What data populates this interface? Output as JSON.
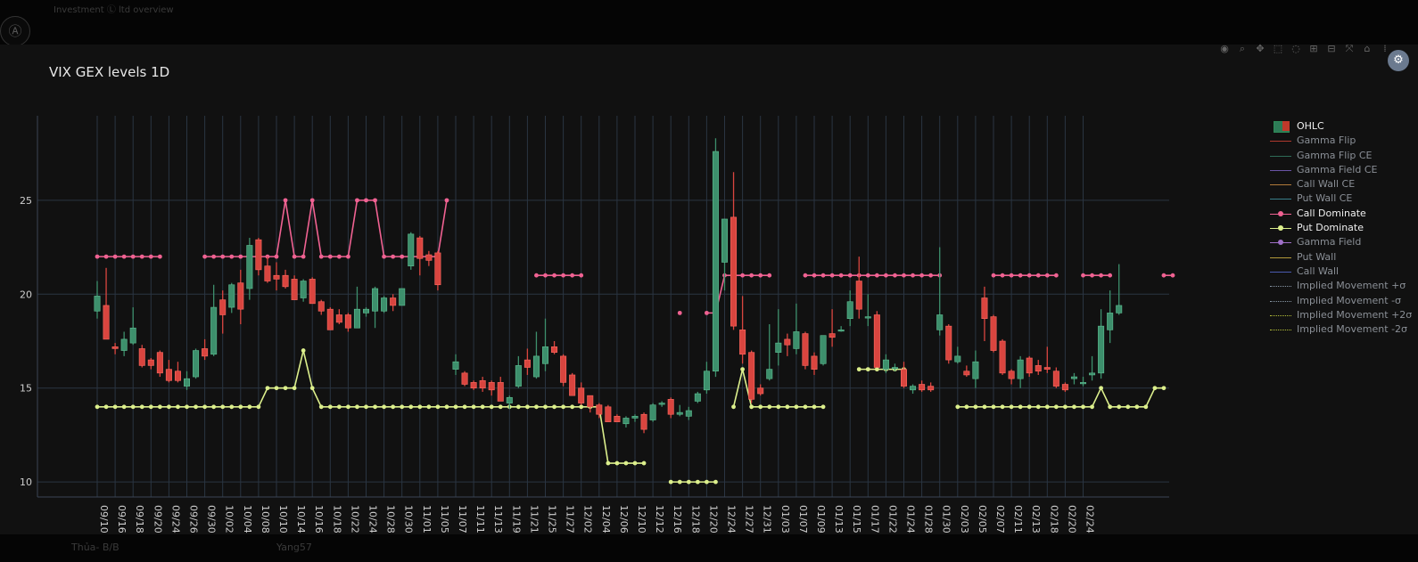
{
  "page": {
    "title": "VIX GEX levels 1D",
    "background_top": "Investment Ⓛ ltd overview",
    "background_bottom_left": "Thủa- B/B",
    "background_bottom_mid": "Yang57"
  },
  "modebar": {
    "icons": [
      "camera-icon",
      "zoom-icon",
      "pan-icon",
      "box-select-icon",
      "lasso-icon",
      "zoom-in-icon",
      "zoom-out-icon",
      "autoscale-icon",
      "home-icon",
      "plotly-logo-icon"
    ]
  },
  "legend": {
    "items": [
      {
        "label": "OHLC",
        "color": "#2e8b57",
        "style": "box",
        "active": true
      },
      {
        "label": "Gamma Flip",
        "color": "#b03a2e",
        "style": "line",
        "active": false
      },
      {
        "label": "Gamma Flip CE",
        "color": "#2e6b57",
        "style": "line",
        "active": false
      },
      {
        "label": "Gamma Field CE",
        "color": "#6a55a6",
        "style": "line",
        "active": false
      },
      {
        "label": "Call Wall CE",
        "color": "#b07a3a",
        "style": "line",
        "active": false
      },
      {
        "label": "Put Wall CE",
        "color": "#3a7f8a",
        "style": "line",
        "active": false
      },
      {
        "label": "Call Dominate",
        "color": "#f06292",
        "style": "marker",
        "active": true
      },
      {
        "label": "Put Dominate",
        "color": "#dcef8c",
        "style": "marker",
        "active": true
      },
      {
        "label": "Gamma Field",
        "color": "#a070c8",
        "style": "marker",
        "active": false
      },
      {
        "label": "Put Wall",
        "color": "#b39a3a",
        "style": "line",
        "active": false
      },
      {
        "label": "Call Wall",
        "color": "#4a5ab0",
        "style": "line",
        "active": false
      },
      {
        "label": "Implied Movement +σ",
        "color": "#8a99a8",
        "style": "dot",
        "active": false
      },
      {
        "label": "Implied Movement -σ",
        "color": "#8a99a8",
        "style": "dot",
        "active": false
      },
      {
        "label": "Implied Movement +2σ",
        "color": "#b7c23a",
        "style": "dot",
        "active": false
      },
      {
        "label": "Implied Movement -2σ",
        "color": "#b7c23a",
        "style": "dot",
        "active": false
      }
    ]
  },
  "chart_data": {
    "type": "candlestick",
    "title": "VIX GEX levels 1D",
    "ylim": [
      9.2,
      29.5
    ],
    "yticks": [
      10,
      15,
      20,
      25
    ],
    "xticks": [
      "09/10",
      "09/16",
      "09/18",
      "09/20",
      "09/24",
      "09/26",
      "09/30",
      "10/02",
      "10/04",
      "10/08",
      "10/10",
      "10/14",
      "10/16",
      "10/18",
      "10/22",
      "10/24",
      "10/28",
      "10/30",
      "11/01",
      "11/05",
      "11/07",
      "11/11",
      "11/13",
      "11/19",
      "11/21",
      "11/25",
      "11/27",
      "12/02",
      "12/04",
      "12/06",
      "12/10",
      "12/12",
      "12/16",
      "12/18",
      "12/20",
      "12/24",
      "12/27",
      "12/31",
      "01/03",
      "01/07",
      "01/09",
      "01/13",
      "01/15",
      "01/17",
      "01/22",
      "01/24",
      "01/28",
      "01/30",
      "02/03",
      "02/05",
      "02/07",
      "02/11",
      "02/13",
      "02/18",
      "02/20",
      "02/24"
    ],
    "colors": {
      "up": "#3d8f6c",
      "down": "#d9453f",
      "call_dominate": "#f06292",
      "put_dominate": "#dcef8c",
      "grid": "#2a3542",
      "axis_text": "#cfcfcf"
    },
    "grid": true,
    "legend_position": "right",
    "ohlc": [
      [
        19.1,
        20.7,
        18.7,
        19.9
      ],
      [
        19.4,
        21.4,
        17.7,
        17.6
      ],
      [
        17.2,
        17.4,
        16.8,
        17.1
      ],
      [
        17.0,
        18.0,
        16.7,
        17.6
      ],
      [
        17.4,
        19.3,
        17.3,
        18.2
      ],
      [
        17.1,
        17.3,
        16.1,
        16.2
      ],
      [
        16.5,
        16.6,
        16.0,
        16.2
      ],
      [
        16.9,
        17.0,
        15.6,
        15.8
      ],
      [
        16.0,
        16.5,
        15.3,
        15.4
      ],
      [
        15.9,
        16.4,
        15.3,
        15.4
      ],
      [
        15.1,
        15.9,
        14.9,
        15.5
      ],
      [
        15.6,
        17.1,
        15.5,
        17.0
      ],
      [
        17.1,
        17.6,
        16.5,
        16.7
      ],
      [
        16.8,
        20.5,
        16.7,
        19.3
      ],
      [
        19.7,
        20.2,
        17.9,
        18.9
      ],
      [
        19.3,
        20.6,
        19.0,
        20.5
      ],
      [
        20.6,
        21.3,
        18.4,
        19.2
      ],
      [
        20.3,
        23.0,
        19.7,
        22.6
      ],
      [
        22.9,
        23.0,
        21.0,
        21.3
      ],
      [
        21.5,
        22.0,
        20.6,
        20.7
      ],
      [
        21.0,
        21.7,
        20.2,
        20.8
      ],
      [
        21.0,
        21.3,
        20.3,
        20.4
      ],
      [
        20.8,
        21.0,
        19.8,
        19.7
      ],
      [
        19.8,
        20.8,
        19.6,
        20.7
      ],
      [
        20.8,
        20.9,
        19.5,
        19.5
      ],
      [
        19.6,
        19.7,
        18.9,
        19.1
      ],
      [
        19.2,
        19.3,
        18.1,
        18.1
      ],
      [
        18.9,
        19.2,
        18.4,
        18.5
      ],
      [
        18.9,
        19.0,
        18.0,
        18.2
      ],
      [
        18.2,
        20.4,
        18.2,
        19.2
      ],
      [
        19.0,
        19.3,
        18.8,
        19.2
      ],
      [
        19.1,
        20.4,
        18.2,
        20.3
      ],
      [
        19.1,
        19.9,
        19.0,
        19.8
      ],
      [
        19.8,
        20.0,
        19.1,
        19.4
      ],
      [
        19.4,
        20.3,
        19.4,
        20.3
      ],
      [
        21.5,
        23.3,
        21.3,
        23.2
      ],
      [
        23.0,
        23.1,
        21.0,
        21.9
      ],
      [
        22.1,
        22.3,
        21.5,
        21.8
      ],
      [
        22.2,
        22.3,
        20.2,
        20.5
      ],
      null,
      [
        16.0,
        16.8,
        15.7,
        16.4
      ],
      [
        15.8,
        15.9,
        15.1,
        15.2
      ],
      [
        15.3,
        15.4,
        14.9,
        15.0
      ],
      [
        15.4,
        15.6,
        14.8,
        15.0
      ],
      [
        15.3,
        15.4,
        14.6,
        14.9
      ],
      [
        15.3,
        15.6,
        14.4,
        14.3
      ],
      [
        14.2,
        14.6,
        13.9,
        14.5
      ],
      [
        15.1,
        16.7,
        15.0,
        16.2
      ],
      [
        16.5,
        17.1,
        15.7,
        16.1
      ],
      [
        15.6,
        18.0,
        15.5,
        16.7
      ],
      [
        16.3,
        18.7,
        15.9,
        17.2
      ],
      [
        17.2,
        17.5,
        16.8,
        16.9
      ],
      [
        16.7,
        16.8,
        15.1,
        15.3
      ],
      [
        15.7,
        15.8,
        14.9,
        14.6
      ],
      [
        15.0,
        15.3,
        14.1,
        14.2
      ],
      [
        14.6,
        14.6,
        13.7,
        14.0
      ],
      [
        14.1,
        14.2,
        13.4,
        13.6
      ],
      [
        14.0,
        14.1,
        13.2,
        13.2
      ],
      [
        13.5,
        13.6,
        13.2,
        13.2
      ],
      [
        13.1,
        13.5,
        12.9,
        13.4
      ],
      [
        13.4,
        13.6,
        13.2,
        13.5
      ],
      [
        13.6,
        13.7,
        12.6,
        12.8
      ],
      [
        13.3,
        14.2,
        13.2,
        14.1
      ],
      [
        14.2,
        14.3,
        14.0,
        14.2
      ],
      [
        14.4,
        14.5,
        13.4,
        13.6
      ],
      [
        13.6,
        14.1,
        13.5,
        13.7
      ],
      [
        13.5,
        14.0,
        13.3,
        13.8
      ],
      [
        14.3,
        14.8,
        14.2,
        14.7
      ],
      [
        14.9,
        16.4,
        14.7,
        15.9
      ],
      [
        15.9,
        28.3,
        15.6,
        27.6
      ],
      [
        21.7,
        24.0,
        20.2,
        24.0
      ],
      [
        24.1,
        26.5,
        18.1,
        18.3
      ],
      [
        18.1,
        19.9,
        16.3,
        16.8
      ],
      [
        16.9,
        17.0,
        14.2,
        14.4
      ],
      [
        15.0,
        15.2,
        14.6,
        14.7
      ],
      [
        15.5,
        18.4,
        15.4,
        16.0
      ],
      [
        16.9,
        19.2,
        16.2,
        17.4
      ],
      [
        17.6,
        17.9,
        16.7,
        17.3
      ],
      [
        17.1,
        19.5,
        16.8,
        18.0
      ],
      [
        17.9,
        18.0,
        16.0,
        16.2
      ],
      [
        16.7,
        16.9,
        15.7,
        16.0
      ],
      [
        16.3,
        17.7,
        16.2,
        17.8
      ],
      [
        17.9,
        19.2,
        17.2,
        17.7
      ],
      [
        18.1,
        18.3,
        18.0,
        18.1
      ],
      [
        18.7,
        20.2,
        18.3,
        19.6
      ],
      [
        20.7,
        22.0,
        18.7,
        19.2
      ],
      [
        18.8,
        20.0,
        18.3,
        18.8
      ],
      [
        18.9,
        19.1,
        17.8,
        16.1
      ],
      [
        16.0,
        16.8,
        15.8,
        16.5
      ],
      [
        16.1,
        16.3,
        15.9,
        16.1
      ],
      [
        16.0,
        16.4,
        15.0,
        15.1
      ],
      [
        14.9,
        15.2,
        14.7,
        15.1
      ],
      [
        15.2,
        15.4,
        14.8,
        14.9
      ],
      [
        15.1,
        15.3,
        14.8,
        14.9
      ],
      [
        18.1,
        22.5,
        17.8,
        18.9
      ],
      [
        18.3,
        18.4,
        16.3,
        16.5
      ],
      [
        16.4,
        17.2,
        16.3,
        16.7
      ],
      [
        15.9,
        16.2,
        15.6,
        15.7
      ],
      [
        15.5,
        17.0,
        15.0,
        16.4
      ],
      [
        19.8,
        20.4,
        17.5,
        18.7
      ],
      [
        18.8,
        18.9,
        16.9,
        17.0
      ],
      [
        17.5,
        17.6,
        15.7,
        15.8
      ],
      [
        15.9,
        16.0,
        15.2,
        15.5
      ],
      [
        15.5,
        16.7,
        15.0,
        16.5
      ],
      [
        16.6,
        16.7,
        15.6,
        15.8
      ],
      [
        16.2,
        16.5,
        15.7,
        15.9
      ],
      [
        16.1,
        17.2,
        15.8,
        16.0
      ],
      [
        15.9,
        16.1,
        15.0,
        15.1
      ],
      [
        15.2,
        15.3,
        14.8,
        14.9
      ],
      [
        15.5,
        15.8,
        15.2,
        15.6
      ],
      [
        15.3,
        15.6,
        15.1,
        15.3
      ],
      [
        15.7,
        16.7,
        15.4,
        15.8
      ],
      [
        15.8,
        19.2,
        15.5,
        18.3
      ],
      [
        18.1,
        20.2,
        17.4,
        19.0
      ],
      [
        19.0,
        21.6,
        18.9,
        19.4
      ]
    ],
    "call_dominate": [
      22,
      22,
      22,
      22,
      22,
      22,
      22,
      22,
      null,
      null,
      null,
      null,
      22,
      22,
      22,
      22,
      22,
      22,
      22,
      22,
      22,
      25,
      22,
      22,
      25,
      22,
      22,
      22,
      22,
      25,
      25,
      25,
      22,
      22,
      22,
      22,
      22,
      22,
      22,
      25,
      null,
      null,
      null,
      null,
      null,
      null,
      null,
      null,
      null,
      21,
      21,
      21,
      21,
      21,
      21,
      null,
      null,
      null,
      null,
      null,
      null,
      null,
      null,
      null,
      null,
      19,
      null,
      null,
      19,
      19,
      21,
      21,
      21,
      21,
      21,
      21,
      null,
      null,
      null,
      21,
      21,
      21,
      21,
      21,
      21,
      21,
      21,
      21,
      21,
      21,
      21,
      21,
      21,
      21,
      21,
      null,
      null,
      null,
      null,
      null,
      21,
      21,
      21,
      21,
      21,
      21,
      21,
      21,
      null,
      null,
      21,
      21,
      21,
      21,
      null,
      null,
      null,
      null,
      null,
      21,
      21
    ],
    "put_dominate": [
      14,
      14,
      14,
      14,
      14,
      14,
      14,
      14,
      14,
      14,
      14,
      14,
      14,
      14,
      14,
      14,
      14,
      14,
      14,
      15,
      15,
      15,
      15,
      17,
      15,
      14,
      14,
      14,
      14,
      14,
      14,
      14,
      14,
      14,
      14,
      14,
      14,
      14,
      14,
      14,
      14,
      14,
      14,
      14,
      14,
      14,
      14,
      14,
      14,
      14,
      14,
      14,
      14,
      14,
      14,
      14,
      14,
      11,
      11,
      11,
      11,
      11,
      null,
      null,
      10,
      10,
      10,
      10,
      10,
      10,
      null,
      14,
      16,
      14,
      14,
      14,
      14,
      14,
      14,
      14,
      14,
      14,
      null,
      null,
      null,
      16,
      16,
      16,
      16,
      16,
      16,
      null,
      null,
      null,
      null,
      null,
      14,
      14,
      14,
      14,
      14,
      14,
      14,
      14,
      14,
      14,
      14,
      14,
      14,
      14,
      14,
      14,
      15,
      14,
      14,
      14,
      14,
      14,
      15,
      15
    ]
  }
}
